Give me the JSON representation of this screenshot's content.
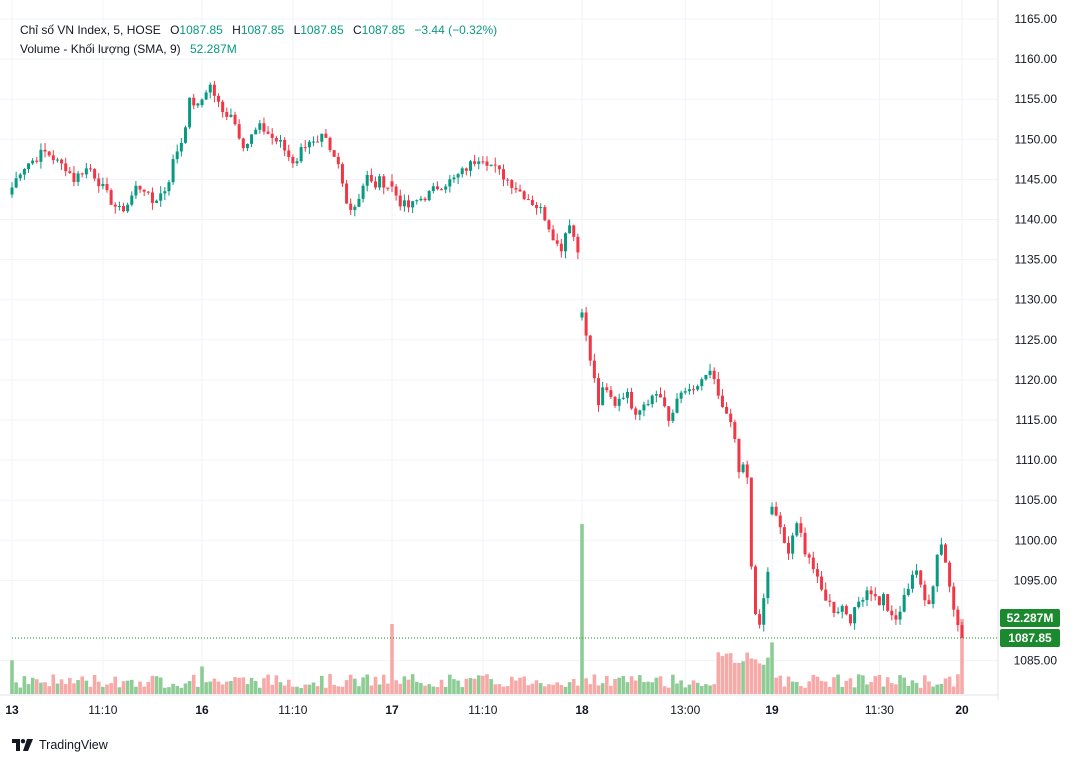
{
  "legend": {
    "symbol": "Chỉ số VN Index, 5, HOSE",
    "open_label": "O",
    "open": "1087.85",
    "high_label": "H",
    "high": "1087.85",
    "low_label": "L",
    "low": "1087.85",
    "close_label": "C",
    "close": "1087.85",
    "change": "−3.44 (−0.32%)",
    "volume_label": "Volume - Khối lượng (SMA, 9)",
    "volume_value": "52.287M"
  },
  "price_tag": {
    "volume": "52.287M",
    "price": "1087.85"
  },
  "brand": "TradingView",
  "colors": {
    "up": "#089981",
    "down": "#f23645",
    "vol_up": "#8ecc96",
    "vol_down": "#f7a9a7",
    "grid": "#f0f3fa",
    "tag": "#1b8a2e"
  },
  "chart_data": {
    "type": "candlestick",
    "title": "Chỉ số VN Index, 5, HOSE",
    "y_axis": {
      "ticks": [
        "1165.00",
        "1160.00",
        "1155.00",
        "1150.00",
        "1145.00",
        "1140.00",
        "1135.00",
        "1130.00",
        "1125.00",
        "1120.00",
        "1115.00",
        "1110.00",
        "1105.00",
        "1100.00",
        "1095.00",
        "1085.00"
      ],
      "range": [
        1083,
        1167
      ]
    },
    "x_axis": {
      "ticks": [
        {
          "label": "13",
          "bold": true,
          "bar": 0
        },
        {
          "label": "11:10",
          "bold": false,
          "bar": 22
        },
        {
          "label": "16",
          "bold": true,
          "bar": 46
        },
        {
          "label": "11:10",
          "bold": false,
          "bar": 68
        },
        {
          "label": "17",
          "bold": true,
          "bar": 92
        },
        {
          "label": "11:10",
          "bold": false,
          "bar": 114
        },
        {
          "label": "18",
          "bold": true,
          "bar": 138
        },
        {
          "label": "13:00",
          "bold": false,
          "bar": 163
        },
        {
          "label": "19",
          "bold": true,
          "bar": 184
        },
        {
          "label": "11:30",
          "bold": false,
          "bar": 210
        },
        {
          "label": "20",
          "bold": true,
          "bar": 230
        }
      ],
      "bar_count": 231
    },
    "segments": [
      {
        "day": "13",
        "points": [
          1144,
          1146,
          1147,
          1147.5,
          1148.5,
          1148,
          1147,
          1146.5,
          1145,
          1146,
          1146.5,
          1145,
          1143.5,
          1142,
          1141,
          1142,
          1144,
          1144,
          1142,
          1143,
          1144,
          1148,
          1150,
          1155,
          1154
        ]
      },
      {
        "day": "16",
        "points": [
          1155,
          1157,
          1155,
          1153,
          1153.5,
          1151,
          1149,
          1150.5,
          1151.5,
          1151,
          1150,
          1149.5,
          1148,
          1147,
          1149,
          1150,
          1149,
          1150.5,
          1148,
          1147,
          1143,
          1141,
          1143,
          1145.5,
          1144,
          1145,
          1144
        ]
      },
      {
        "day": "17",
        "points": [
          1144,
          1142,
          1141.5,
          1142.5,
          1143,
          1144,
          1144.5,
          1145,
          1146,
          1147,
          1148,
          1147,
          1146,
          1145,
          1144,
          1143,
          1142,
          1141,
          1138.5,
          1136,
          1140,
          1136
        ]
      },
      {
        "day": "18",
        "points": [
          1129,
          1124,
          1121,
          1117,
          1119,
          1118,
          1117,
          1118,
          1118.5,
          1117,
          1116,
          1117,
          1117.5,
          1118,
          1118.5,
          1117,
          1114,
          1117,
          1119,
          1118,
          1119,
          1118.5,
          1120,
          1121,
          1120,
          1118,
          1116,
          1115,
          1112,
          1107,
          1111,
          1096,
          1089,
          1091,
          1096
        ]
      },
      {
        "day": "19",
        "points": [
          1104,
          1103,
          1100,
          1098,
          1101,
          1102,
          1099,
          1098,
          1096,
          1094,
          1093,
          1092,
          1091,
          1092,
          1091,
          1090,
          1092,
          1093,
          1094,
          1093.5,
          1092,
          1093,
          1091,
          1089.5,
          1091,
          1093,
          1095,
          1097,
          1094,
          1092,
          1093,
          1098,
          1100,
          1096,
          1092,
          1090
        ]
      }
    ],
    "volume_note": "relative bar heights; spike on the first bar of session 18",
    "last_price": 1087.85,
    "last_volume": "52.287M"
  }
}
